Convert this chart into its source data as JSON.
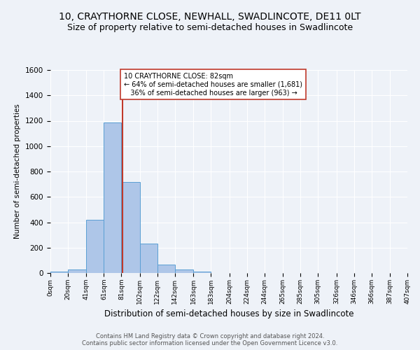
{
  "title1": "10, CRAYTHORNE CLOSE, NEWHALL, SWADLINCOTE, DE11 0LT",
  "title2": "Size of property relative to semi-detached houses in Swadlincote",
  "xlabel": "Distribution of semi-detached houses by size in Swadlincote",
  "ylabel": "Number of semi-detached properties",
  "footnote1": "Contains HM Land Registry data © Crown copyright and database right 2024.",
  "footnote2": "Contains public sector information licensed under the Open Government Licence v3.0.",
  "bins": [
    0,
    20,
    41,
    61,
    81,
    102,
    122,
    142,
    163,
    183,
    204,
    224,
    244,
    265,
    285,
    305,
    326,
    346,
    366,
    387,
    407
  ],
  "bin_labels": [
    "0sqm",
    "20sqm",
    "41sqm",
    "61sqm",
    "81sqm",
    "102sqm",
    "122sqm",
    "142sqm",
    "163sqm",
    "183sqm",
    "204sqm",
    "224sqm",
    "244sqm",
    "265sqm",
    "285sqm",
    "305sqm",
    "326sqm",
    "346sqm",
    "366sqm",
    "387sqm",
    "407sqm"
  ],
  "counts": [
    10,
    28,
    420,
    1185,
    715,
    230,
    65,
    28,
    13,
    0,
    0,
    0,
    0,
    0,
    0,
    0,
    0,
    0,
    0,
    0
  ],
  "bar_color": "#aec6e8",
  "bar_edge_color": "#5a9fd4",
  "property_size": 82,
  "vline_color": "#c0392b",
  "annotation_line1": "10 CRAYTHORNE CLOSE: 82sqm",
  "annotation_line2": "← 64% of semi-detached houses are smaller (1,681)",
  "annotation_line3": "36% of semi-detached houses are larger (963) →",
  "annotation_box_color": "white",
  "annotation_box_edge": "#c0392b",
  "ylim": [
    0,
    1600
  ],
  "yticks": [
    0,
    200,
    400,
    600,
    800,
    1000,
    1200,
    1400,
    1600
  ],
  "bg_color": "#eef2f8",
  "grid_color": "white",
  "title1_fontsize": 10,
  "title2_fontsize": 9
}
